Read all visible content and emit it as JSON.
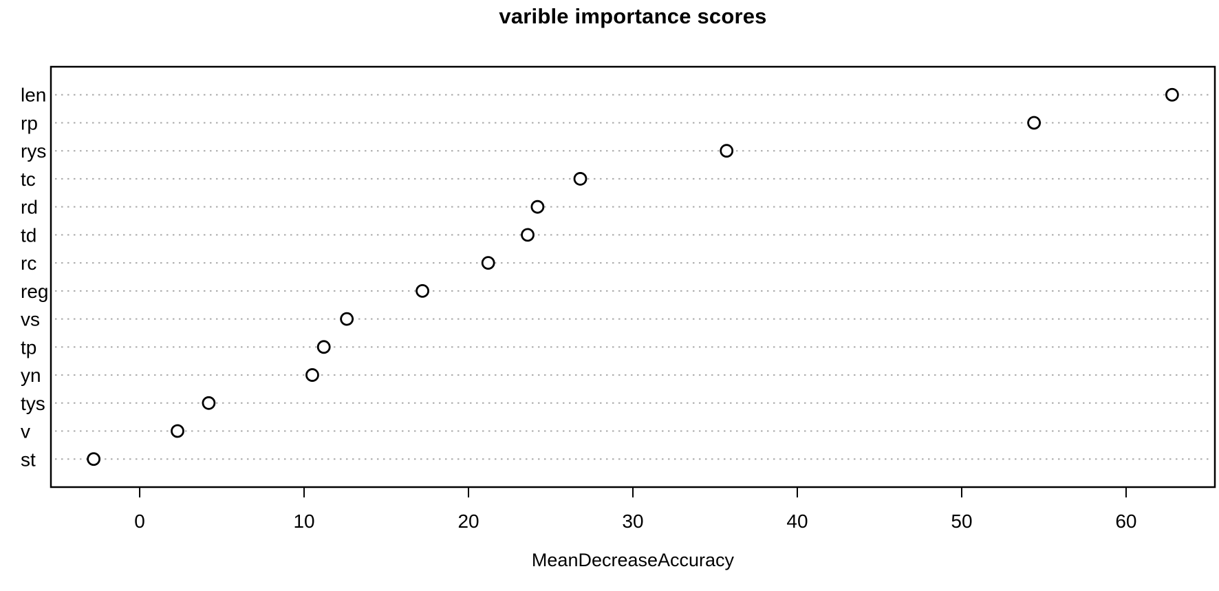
{
  "chart_data": {
    "type": "scatter",
    "variant": "horizontal-dotchart",
    "title": "varible importance scores",
    "xlabel": "MeanDecreaseAccuracy",
    "ylabel": "",
    "categories": [
      "len",
      "rp",
      "rys",
      "tc",
      "rd",
      "td",
      "rc",
      "reg",
      "vs",
      "tp",
      "yn",
      "tys",
      "v",
      "st"
    ],
    "values": [
      62.8,
      54.4,
      35.7,
      26.8,
      24.2,
      23.6,
      21.2,
      17.2,
      12.6,
      11.2,
      10.5,
      4.2,
      2.3,
      -2.8
    ],
    "xlim": [
      -5.4,
      65.4
    ],
    "xticks": [
      0,
      10,
      20,
      30,
      40,
      50,
      60
    ],
    "grid": "dotted horizontal lines per category",
    "legend": "none",
    "point_style": "open-circle",
    "colors": {
      "text": "#000000",
      "box_border": "#000000",
      "grid_line": "#a9a9a9",
      "point_stroke": "#000000",
      "point_fill": "#ffffff"
    }
  }
}
